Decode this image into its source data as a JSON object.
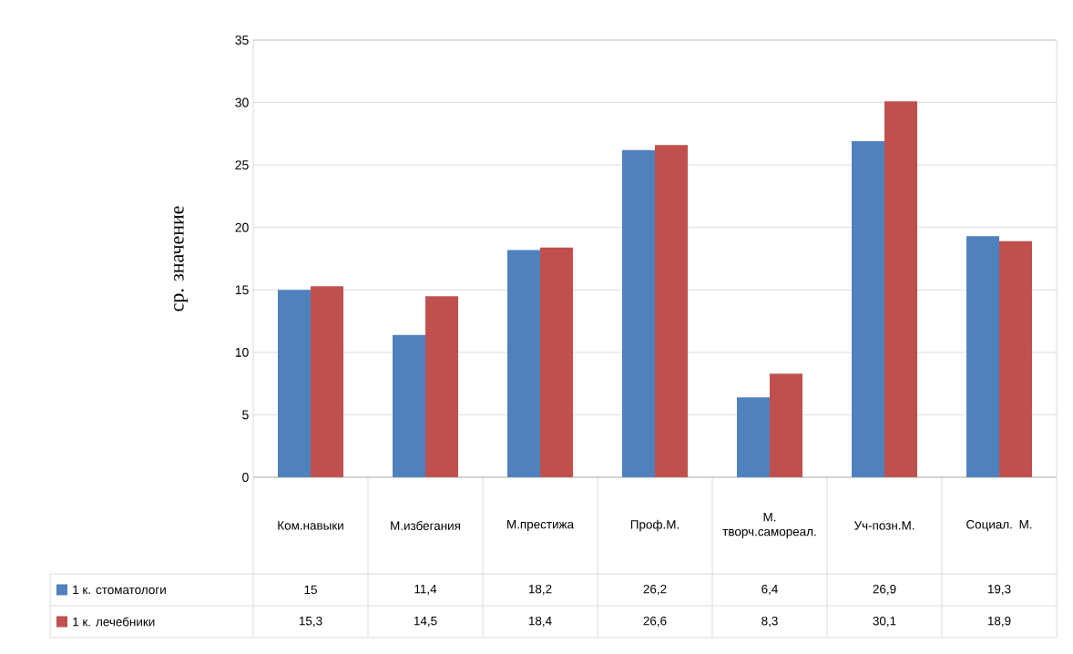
{
  "chart_data": {
    "type": "bar",
    "ylabel": "ср. значение",
    "categories": [
      "Ком.навыки",
      "М.избегания",
      "М.престижа",
      "Проф.М.",
      "М. творч.самореал.",
      "Уч-позн.М.",
      "Социал. М."
    ],
    "series": [
      {
        "name": "1 к. стоматологи",
        "color": "#4f81bd",
        "values": [
          15,
          11.4,
          18.2,
          26.2,
          6.4,
          26.9,
          19.3
        ],
        "value_labels": [
          "15",
          "11,4",
          "18,2",
          "26,2",
          "6,4",
          "26,9",
          "19,3"
        ]
      },
      {
        "name": "1 к. лечебники",
        "color": "#c0504d",
        "values": [
          15.3,
          14.5,
          18.4,
          26.6,
          8.3,
          30.1,
          18.9
        ],
        "value_labels": [
          "15,3",
          "14,5",
          "18,4",
          "26,6",
          "8,3",
          "30,1",
          "18,9"
        ]
      }
    ],
    "ylim": [
      0,
      35
    ],
    "yticks": [
      0,
      5,
      10,
      15,
      20,
      25,
      30,
      35
    ],
    "grid": "y",
    "legend": "bottom left"
  }
}
